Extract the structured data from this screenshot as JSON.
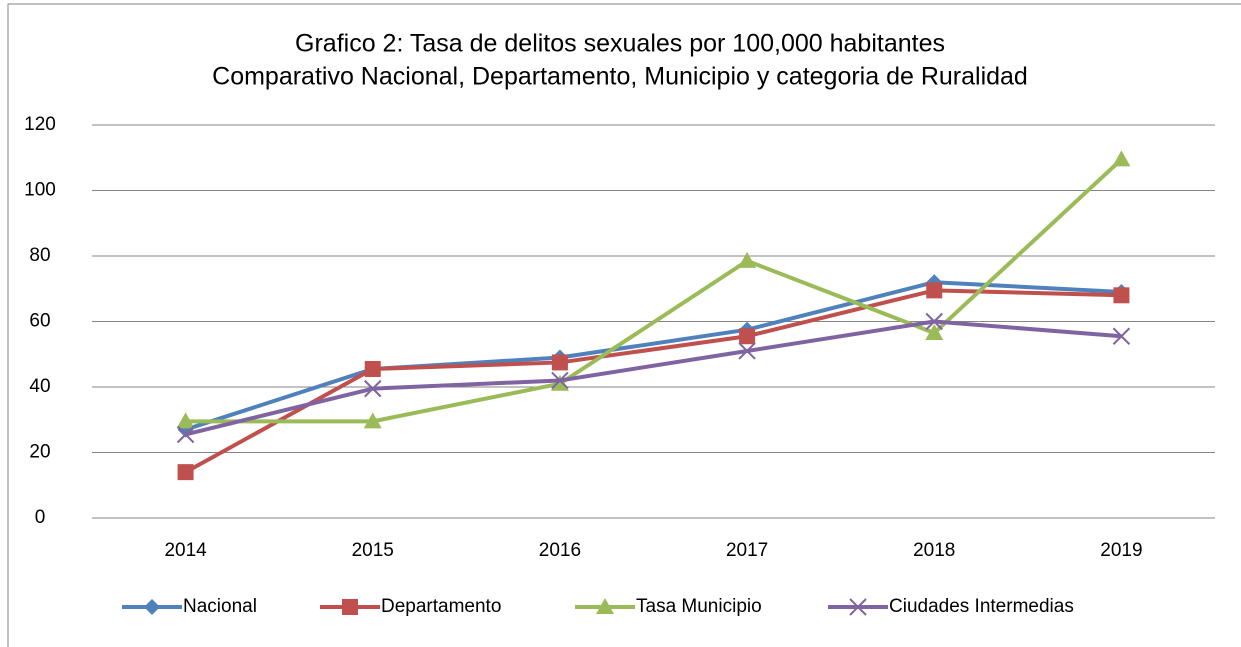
{
  "chart_data": {
    "type": "line",
    "title": "Grafico 2: Tasa de delitos sexuales por 100,000 habitantes",
    "subtitle": "Comparativo Nacional, Departamento, Municipio y categoria de Ruralidad",
    "categories": [
      "2014",
      "2015",
      "2016",
      "2017",
      "2018",
      "2019"
    ],
    "series": [
      {
        "name": "Nacional",
        "color": "#4f81bd",
        "marker": "diamond",
        "values": [
          27,
          45.5,
          49,
          57.5,
          72,
          69
        ]
      },
      {
        "name": "Departamento",
        "color": "#c0504d",
        "marker": "square",
        "values": [
          14,
          45.5,
          47.5,
          55.5,
          69.5,
          68
        ]
      },
      {
        "name": "Tasa Municipio",
        "color": "#9bbb59",
        "marker": "triangle",
        "values": [
          29.5,
          29.5,
          41,
          78.5,
          56.5,
          109.5
        ]
      },
      {
        "name": "Ciudades Intermedias",
        "color": "#8064a2",
        "marker": "x",
        "values": [
          25.5,
          39.5,
          42,
          51,
          60,
          55.5
        ]
      }
    ],
    "ylim": [
      0,
      120
    ],
    "yticks": [
      0,
      20,
      40,
      60,
      80,
      100,
      120
    ],
    "grid": true,
    "legend": "bottom"
  }
}
